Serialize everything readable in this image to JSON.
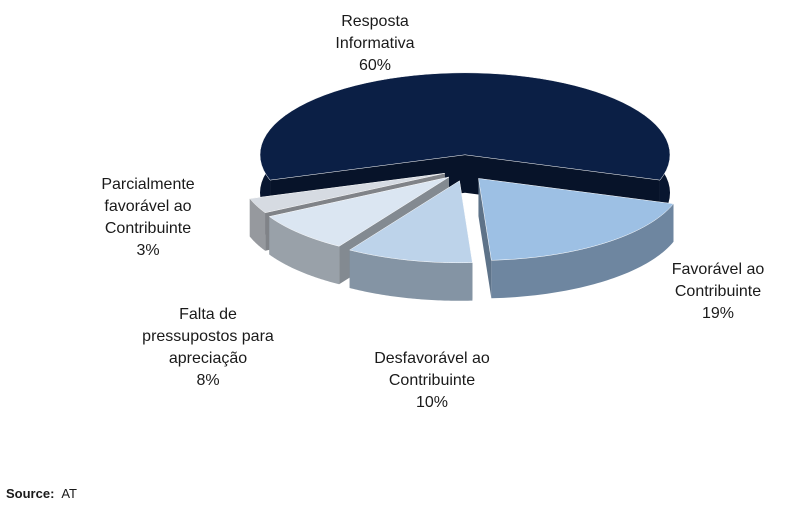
{
  "chart_data": {
    "type": "pie",
    "categories": [
      "Resposta\nInformativa",
      "Favorável ao\nContribuinte",
      "Desfavorável ao\nContribuinte",
      "Falta de\npressupostos para\napreciação",
      "Parcialmente\nfavorável ao\nContribuinte"
    ],
    "values": [
      60,
      19,
      10,
      8,
      3
    ],
    "value_labels": [
      "60%",
      "19%",
      "10%",
      "8%",
      "3%"
    ],
    "colors": [
      "#0b1f45",
      "#9dc0e4",
      "#bdd3ea",
      "#dbe6f2",
      "#d6dbe2"
    ]
  },
  "source": {
    "label": "Source:",
    "text": "AT"
  }
}
